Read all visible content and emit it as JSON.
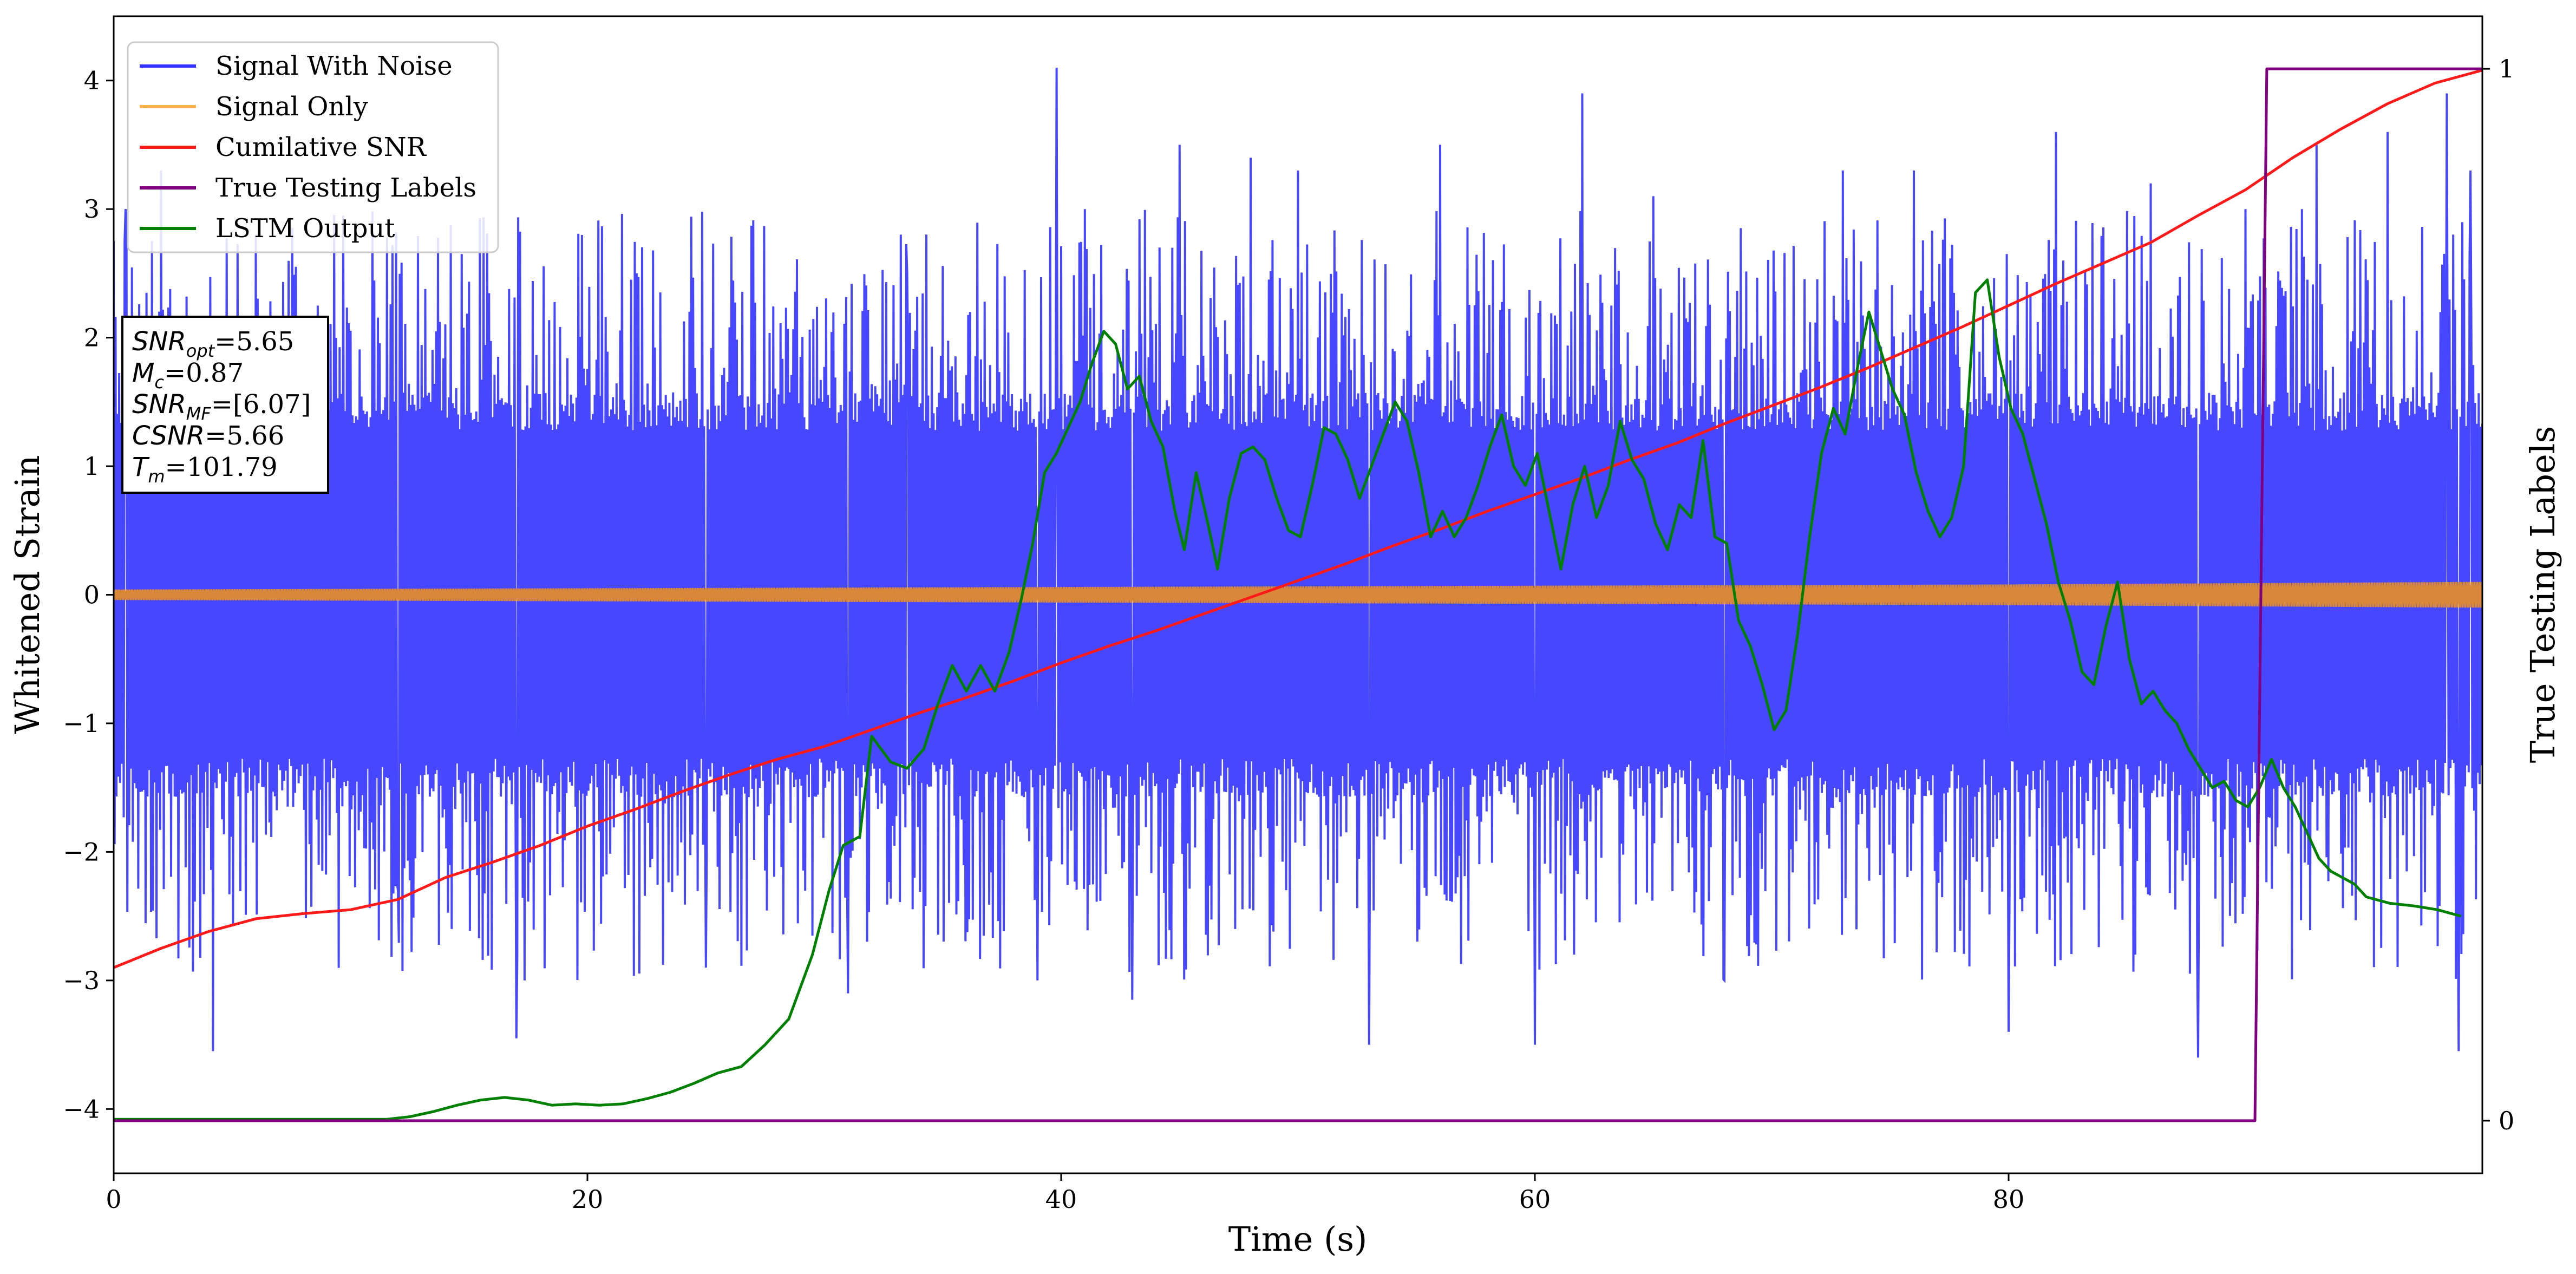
{
  "chart_data": {
    "type": "line",
    "x_axis": {
      "label": "Time (s)",
      "range": [
        0,
        100
      ],
      "ticks": [
        0,
        20,
        40,
        60,
        80
      ],
      "tick_labels": [
        "0",
        "20",
        "40",
        "60",
        "80"
      ]
    },
    "y_axis_left": {
      "label": "Whitened Strain",
      "range": [
        -4.5,
        4.5
      ],
      "ticks": [
        -4,
        -3,
        -2,
        -1,
        0,
        1,
        2,
        3,
        4
      ],
      "tick_labels": [
        "−4",
        "−3",
        "−2",
        "−1",
        "0",
        "1",
        "2",
        "3",
        "4"
      ]
    },
    "y_axis_right": {
      "label": "True Testing Labels",
      "range": [
        -0.05,
        1.05
      ],
      "ticks": [
        0,
        1
      ],
      "tick_labels": [
        "0",
        "1"
      ]
    },
    "grid": false,
    "legend": {
      "placement": "top-left",
      "entries": [
        {
          "label": "Signal With Noise",
          "color": "#3333ff"
        },
        {
          "label": "Signal Only",
          "color": "#ffb347"
        },
        {
          "label": "Cumilative SNR",
          "color": "#ff1a1a"
        },
        {
          "label": "True Testing Labels",
          "color": "#800080"
        },
        {
          "label": "LSTM Output",
          "color": "#008000"
        }
      ]
    },
    "info_box": {
      "lines": [
        {
          "base": "SNR",
          "sub": "opt",
          "value": "=5.65"
        },
        {
          "base": "M",
          "sub": "c",
          "value": "=0.87"
        },
        {
          "base": "SNR",
          "sub": "MF",
          "value": "=[6.07]"
        },
        {
          "base": "CSNR",
          "sub": "",
          "value": "=5.66"
        },
        {
          "base": "T",
          "sub": "m",
          "value": "=101.79"
        }
      ]
    },
    "series": [
      {
        "name": "Signal With Noise",
        "color": "#3333ff",
        "axis": "left",
        "style": "dense noise band",
        "envelope": {
          "band_abs": 1.5,
          "spike_extremes": [
            [
              0.5,
              3.0
            ],
            [
              2.0,
              3.3
            ],
            [
              4.2,
              -3.55
            ],
            [
              6.0,
              2.8
            ],
            [
              12.0,
              -2.3
            ],
            [
              17.0,
              -3.45
            ],
            [
              25.0,
              -2.9
            ],
            [
              31.0,
              -3.1
            ],
            [
              33.5,
              2.5
            ],
            [
              39.0,
              -3.0
            ],
            [
              39.8,
              4.1
            ],
            [
              41.0,
              3.0
            ],
            [
              43.0,
              -3.15
            ],
            [
              45.0,
              3.5
            ],
            [
              48.0,
              3.4
            ],
            [
              50.0,
              3.3
            ],
            [
              53.0,
              -3.5
            ],
            [
              56.0,
              3.5
            ],
            [
              60.0,
              -3.5
            ],
            [
              62.0,
              3.9
            ],
            [
              65.0,
              3.1
            ],
            [
              68.0,
              -3.0
            ],
            [
              73.0,
              3.3
            ],
            [
              76.0,
              3.3
            ],
            [
              80.0,
              -3.4
            ],
            [
              82.0,
              3.6
            ],
            [
              86.0,
              3.2
            ],
            [
              88.0,
              -3.6
            ],
            [
              90.0,
              3.0
            ],
            [
              93.0,
              3.5
            ],
            [
              96.0,
              3.6
            ],
            [
              98.5,
              3.9
            ],
            [
              99.0,
              -3.55
            ],
            [
              99.5,
              3.3
            ]
          ]
        }
      },
      {
        "name": "Signal Only",
        "color": "#ffb347",
        "axis": "left",
        "style": "thin band around zero",
        "amplitude": [
          [
            0,
            0.04
          ],
          [
            40,
            0.06
          ],
          [
            80,
            0.08
          ],
          [
            100,
            0.1
          ]
        ]
      },
      {
        "name": "Cumilative SNR",
        "color": "#ff1a1a",
        "axis": "left",
        "points": [
          [
            0,
            -2.9
          ],
          [
            2,
            -2.75
          ],
          [
            4,
            -2.62
          ],
          [
            6,
            -2.52
          ],
          [
            8,
            -2.48
          ],
          [
            10,
            -2.45
          ],
          [
            12,
            -2.37
          ],
          [
            14,
            -2.2
          ],
          [
            16,
            -2.08
          ],
          [
            18,
            -1.95
          ],
          [
            20,
            -1.8
          ],
          [
            22,
            -1.67
          ],
          [
            24,
            -1.53
          ],
          [
            26,
            -1.4
          ],
          [
            28,
            -1.28
          ],
          [
            30,
            -1.18
          ],
          [
            32,
            -1.05
          ],
          [
            34,
            -0.92
          ],
          [
            36,
            -0.8
          ],
          [
            38,
            -0.67
          ],
          [
            40,
            -0.53
          ],
          [
            42,
            -0.4
          ],
          [
            44,
            -0.28
          ],
          [
            46,
            -0.15
          ],
          [
            48,
            -0.02
          ],
          [
            50,
            0.11
          ],
          [
            52,
            0.24
          ],
          [
            54,
            0.38
          ],
          [
            56,
            0.51
          ],
          [
            58,
            0.65
          ],
          [
            60,
            0.78
          ],
          [
            62,
            0.91
          ],
          [
            64,
            1.05
          ],
          [
            66,
            1.18
          ],
          [
            68,
            1.33
          ],
          [
            70,
            1.47
          ],
          [
            72,
            1.61
          ],
          [
            74,
            1.76
          ],
          [
            76,
            1.92
          ],
          [
            78,
            2.08
          ],
          [
            80,
            2.25
          ],
          [
            82,
            2.42
          ],
          [
            84,
            2.58
          ],
          [
            86,
            2.74
          ],
          [
            88,
            2.95
          ],
          [
            90,
            3.15
          ],
          [
            92,
            3.4
          ],
          [
            94,
            3.62
          ],
          [
            96,
            3.82
          ],
          [
            98,
            3.98
          ],
          [
            100,
            4.08
          ]
        ]
      },
      {
        "name": "True Testing Labels",
        "color": "#800080",
        "axis": "right",
        "points": [
          [
            0,
            0
          ],
          [
            90.4,
            0
          ],
          [
            90.9,
            1
          ],
          [
            100,
            1
          ]
        ]
      },
      {
        "name": "LSTM Output",
        "color": "#008000",
        "axis": "left",
        "points": [
          [
            0,
            -4.08
          ],
          [
            11.5,
            -4.08
          ],
          [
            12.5,
            -4.06
          ],
          [
            13.5,
            -4.02
          ],
          [
            14.5,
            -3.97
          ],
          [
            15.5,
            -3.93
          ],
          [
            16.5,
            -3.91
          ],
          [
            17.5,
            -3.93
          ],
          [
            18.5,
            -3.97
          ],
          [
            19.5,
            -3.96
          ],
          [
            20.5,
            -3.97
          ],
          [
            21.5,
            -3.96
          ],
          [
            22.5,
            -3.92
          ],
          [
            23.5,
            -3.87
          ],
          [
            24.5,
            -3.8
          ],
          [
            25.5,
            -3.72
          ],
          [
            26.5,
            -3.67
          ],
          [
            27.5,
            -3.5
          ],
          [
            28.5,
            -3.3
          ],
          [
            29.5,
            -2.8
          ],
          [
            30.2,
            -2.3
          ],
          [
            30.8,
            -1.95
          ],
          [
            31.5,
            -1.88
          ],
          [
            32.0,
            -1.1
          ],
          [
            32.8,
            -1.3
          ],
          [
            33.5,
            -1.35
          ],
          [
            34.2,
            -1.2
          ],
          [
            34.8,
            -0.85
          ],
          [
            35.4,
            -0.55
          ],
          [
            36.0,
            -0.75
          ],
          [
            36.6,
            -0.55
          ],
          [
            37.2,
            -0.75
          ],
          [
            37.8,
            -0.45
          ],
          [
            38.3,
            -0.05
          ],
          [
            38.8,
            0.4
          ],
          [
            39.3,
            0.95
          ],
          [
            39.8,
            1.1
          ],
          [
            40.3,
            1.3
          ],
          [
            40.8,
            1.5
          ],
          [
            41.3,
            1.8
          ],
          [
            41.8,
            2.05
          ],
          [
            42.3,
            1.95
          ],
          [
            42.8,
            1.6
          ],
          [
            43.3,
            1.7
          ],
          [
            43.8,
            1.35
          ],
          [
            44.3,
            1.15
          ],
          [
            44.8,
            0.65
          ],
          [
            45.2,
            0.35
          ],
          [
            45.7,
            0.95
          ],
          [
            46.2,
            0.55
          ],
          [
            46.6,
            0.2
          ],
          [
            47.1,
            0.75
          ],
          [
            47.6,
            1.1
          ],
          [
            48.1,
            1.15
          ],
          [
            48.6,
            1.05
          ],
          [
            49.1,
            0.75
          ],
          [
            49.6,
            0.5
          ],
          [
            50.1,
            0.45
          ],
          [
            50.6,
            0.85
          ],
          [
            51.1,
            1.3
          ],
          [
            51.6,
            1.25
          ],
          [
            52.1,
            1.05
          ],
          [
            52.6,
            0.75
          ],
          [
            53.1,
            1.0
          ],
          [
            53.6,
            1.25
          ],
          [
            54.1,
            1.5
          ],
          [
            54.6,
            1.35
          ],
          [
            55.1,
            0.95
          ],
          [
            55.6,
            0.45
          ],
          [
            56.1,
            0.65
          ],
          [
            56.6,
            0.45
          ],
          [
            57.1,
            0.6
          ],
          [
            57.6,
            0.85
          ],
          [
            58.1,
            1.15
          ],
          [
            58.6,
            1.4
          ],
          [
            59.1,
            1.0
          ],
          [
            59.6,
            0.85
          ],
          [
            60.1,
            1.1
          ],
          [
            60.6,
            0.65
          ],
          [
            61.1,
            0.2
          ],
          [
            61.6,
            0.7
          ],
          [
            62.1,
            1.0
          ],
          [
            62.6,
            0.6
          ],
          [
            63.1,
            0.85
          ],
          [
            63.6,
            1.35
          ],
          [
            64.1,
            1.05
          ],
          [
            64.6,
            0.9
          ],
          [
            65.1,
            0.55
          ],
          [
            65.6,
            0.35
          ],
          [
            66.1,
            0.7
          ],
          [
            66.6,
            0.6
          ],
          [
            67.1,
            1.2
          ],
          [
            67.6,
            0.45
          ],
          [
            68.1,
            0.4
          ],
          [
            68.6,
            -0.2
          ],
          [
            69.1,
            -0.4
          ],
          [
            69.6,
            -0.7
          ],
          [
            70.1,
            -1.05
          ],
          [
            70.6,
            -0.9
          ],
          [
            71.1,
            -0.3
          ],
          [
            71.6,
            0.45
          ],
          [
            72.1,
            1.1
          ],
          [
            72.6,
            1.45
          ],
          [
            73.1,
            1.25
          ],
          [
            73.6,
            1.75
          ],
          [
            74.1,
            2.2
          ],
          [
            74.6,
            1.9
          ],
          [
            75.1,
            1.6
          ],
          [
            75.6,
            1.4
          ],
          [
            76.1,
            0.95
          ],
          [
            76.6,
            0.65
          ],
          [
            77.1,
            0.45
          ],
          [
            77.6,
            0.6
          ],
          [
            78.1,
            1.0
          ],
          [
            78.6,
            2.35
          ],
          [
            79.1,
            2.45
          ],
          [
            79.6,
            1.85
          ],
          [
            80.1,
            1.45
          ],
          [
            80.6,
            1.25
          ],
          [
            81.1,
            0.9
          ],
          [
            81.6,
            0.55
          ],
          [
            82.1,
            0.1
          ],
          [
            82.6,
            -0.2
          ],
          [
            83.1,
            -0.6
          ],
          [
            83.6,
            -0.7
          ],
          [
            84.1,
            -0.25
          ],
          [
            84.6,
            0.1
          ],
          [
            85.1,
            -0.5
          ],
          [
            85.6,
            -0.85
          ],
          [
            86.1,
            -0.75
          ],
          [
            86.6,
            -0.9
          ],
          [
            87.1,
            -1.0
          ],
          [
            87.6,
            -1.2
          ],
          [
            88.1,
            -1.35
          ],
          [
            88.6,
            -1.5
          ],
          [
            89.1,
            -1.45
          ],
          [
            89.6,
            -1.6
          ],
          [
            90.1,
            -1.65
          ],
          [
            90.6,
            -1.5
          ],
          [
            91.1,
            -1.28
          ],
          [
            91.6,
            -1.5
          ],
          [
            92.1,
            -1.65
          ],
          [
            92.6,
            -1.85
          ],
          [
            93.1,
            -2.05
          ],
          [
            93.6,
            -2.15
          ],
          [
            94.1,
            -2.2
          ],
          [
            94.6,
            -2.25
          ],
          [
            95.1,
            -2.35
          ],
          [
            96.1,
            -2.4
          ],
          [
            97.1,
            -2.42
          ],
          [
            98.1,
            -2.45
          ],
          [
            99.1,
            -2.5
          ]
        ]
      }
    ]
  }
}
